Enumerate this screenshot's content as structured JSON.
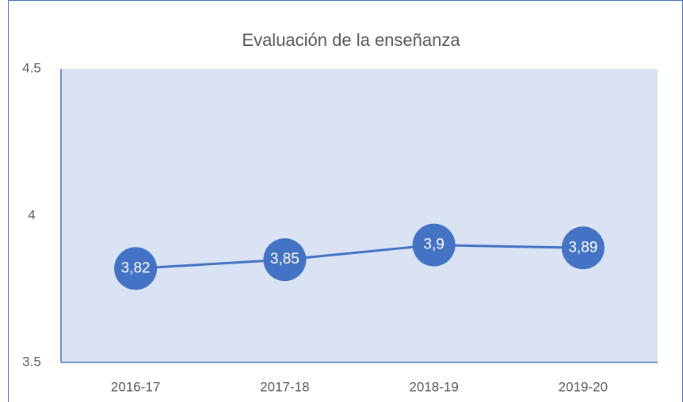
{
  "chart_data": {
    "type": "line",
    "title": "Evaluación de la enseñanza",
    "categories": [
      "2016-17",
      "2017-18",
      "2018-19",
      "2019-20"
    ],
    "values": [
      3.82,
      3.85,
      3.9,
      3.89
    ],
    "value_labels": [
      "3,82",
      "3,85",
      "3,9",
      "3,89"
    ],
    "color": "#4472c4",
    "ylim": [
      3.5,
      4.5
    ],
    "yticks": [
      3.5,
      4,
      4.5
    ],
    "grid": false
  }
}
